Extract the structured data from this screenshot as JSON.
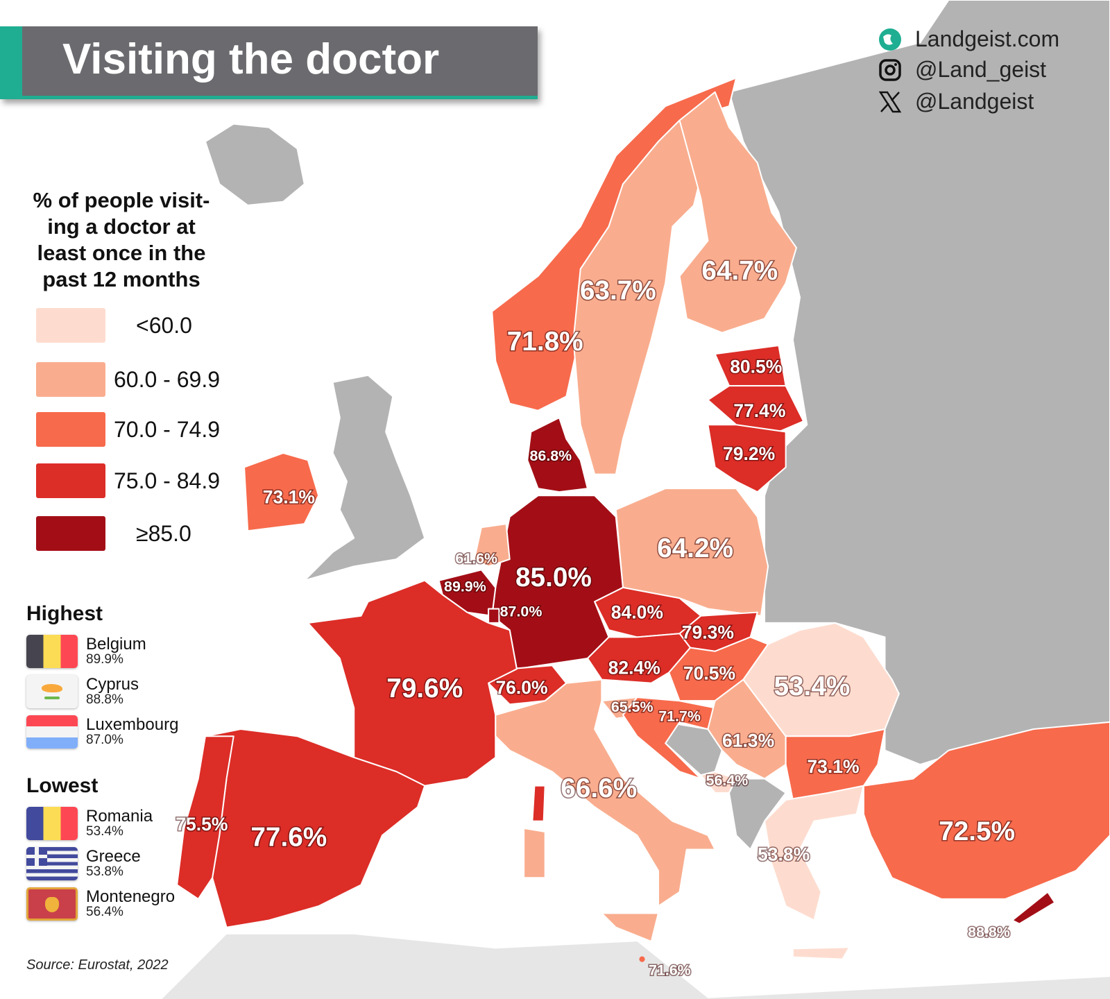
{
  "title": "Visiting the doctor",
  "social": [
    {
      "icon": "globe-icon",
      "text": "Landgeist.com"
    },
    {
      "icon": "instagram-icon",
      "text": "@Land_geist"
    },
    {
      "icon": "x-icon",
      "text": "@Landgeist"
    }
  ],
  "legend": {
    "title_lines": [
      "% of people visit-",
      "ing a doctor at",
      "least once in the",
      "past 12 months"
    ],
    "bins": [
      {
        "label": "<60.0",
        "color": "#fddccf"
      },
      {
        "label": "60.0 - 69.9",
        "color": "#f9ad8e"
      },
      {
        "label": "70.0 - 74.9",
        "color": "#f76a4c"
      },
      {
        "label": "75.0 - 84.9",
        "color": "#dc2d27"
      },
      {
        "label": "≥85.0",
        "color": "#a30e16"
      }
    ]
  },
  "highest": {
    "heading": "Highest",
    "items": [
      {
        "name": "Belgium",
        "value": "89.9%"
      },
      {
        "name": "Cyprus",
        "value": "88.8%"
      },
      {
        "name": "Luxembourg",
        "value": "87.0%"
      }
    ]
  },
  "lowest": {
    "heading": "Lowest",
    "items": [
      {
        "name": "Romania",
        "value": "53.4%"
      },
      {
        "name": "Greece",
        "value": "53.8%"
      },
      {
        "name": "Montenegro",
        "value": "56.4%"
      }
    ]
  },
  "source": "Source: Eurostat, 2022",
  "regions": {
    "norway": {
      "value": "71.8%",
      "bin": 2
    },
    "sweden": {
      "value": "63.7%",
      "bin": 1
    },
    "finland": {
      "value": "64.7%",
      "bin": 1
    },
    "estonia": {
      "value": "80.5%",
      "bin": 3
    },
    "latvia": {
      "value": "77.4%",
      "bin": 3
    },
    "lithuania": {
      "value": "79.2%",
      "bin": 3
    },
    "denmark": {
      "value": "86.8%",
      "bin": 4
    },
    "ireland": {
      "value": "73.1%",
      "bin": 2
    },
    "poland": {
      "value": "64.2%",
      "bin": 1
    },
    "netherlands": {
      "value": "61.6%",
      "bin": 1
    },
    "belgium": {
      "value": "89.9%",
      "bin": 4
    },
    "germany": {
      "value": "85.0%",
      "bin": 4
    },
    "luxembourg": {
      "value": "87.0%",
      "bin": 4
    },
    "czechia": {
      "value": "84.0%",
      "bin": 3
    },
    "slovakia": {
      "value": "79.3%",
      "bin": 3
    },
    "france": {
      "value": "79.6%",
      "bin": 3
    },
    "switzerland": {
      "value": "76.0%",
      "bin": 3
    },
    "austria": {
      "value": "82.4%",
      "bin": 3
    },
    "hungary": {
      "value": "70.5%",
      "bin": 2
    },
    "romania": {
      "value": "53.4%",
      "bin": 0
    },
    "slovenia": {
      "value": "65.5%",
      "bin": 1
    },
    "croatia": {
      "value": "71.7%",
      "bin": 2
    },
    "serbia": {
      "value": "61.3%",
      "bin": 1
    },
    "bulgaria": {
      "value": "73.1%",
      "bin": 2
    },
    "montenegro": {
      "value": "56.4%",
      "bin": 0
    },
    "italy": {
      "value": "66.6%",
      "bin": 1
    },
    "portugal": {
      "value": "75.5%",
      "bin": 3
    },
    "spain": {
      "value": "77.6%",
      "bin": 3
    },
    "turkey": {
      "value": "72.5%",
      "bin": 2
    },
    "greece": {
      "value": "53.8%",
      "bin": 0
    },
    "cyprus": {
      "value": "88.8%",
      "bin": 4
    },
    "malta": {
      "value": "71.6%",
      "bin": 2
    }
  }
}
